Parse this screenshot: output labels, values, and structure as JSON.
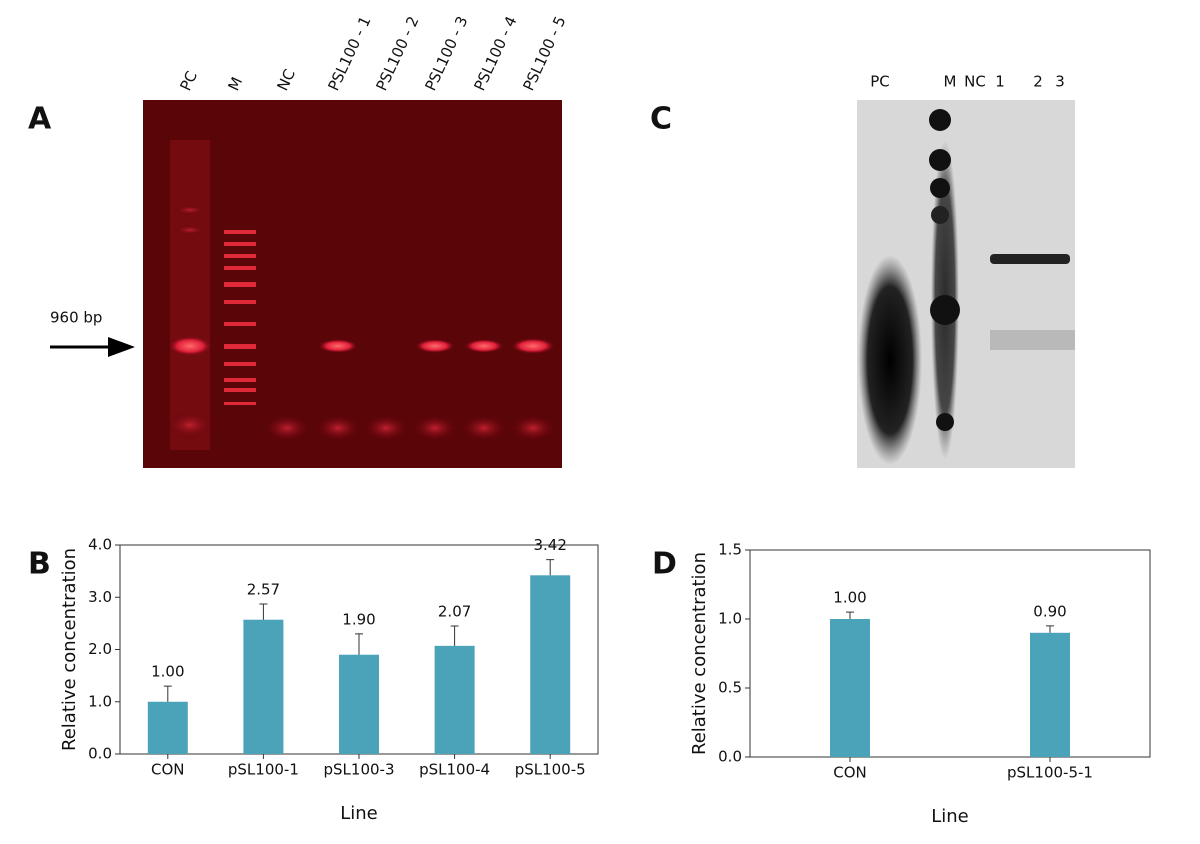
{
  "panel_letters": [
    "A",
    "B",
    "C",
    "D"
  ],
  "gels": [
    {
      "lanes": [
        "PC",
        "M",
        "NC",
        "PSL100 - 1",
        "PSL100 - 2",
        "PSL100 - 3",
        "PSL100 - 4",
        "PSL100 - 5"
      ],
      "marker_label": "960 bp"
    },
    {
      "lanes": [
        "PC",
        "M",
        "NC",
        "1",
        "2",
        "3"
      ]
    }
  ],
  "chart_data": [
    {
      "type": "bar",
      "xlabel": "Line",
      "ylabel": "Relative concentration",
      "categories": [
        "CON",
        "pSL100-1",
        "pSL100-3",
        "pSL100-4",
        "pSL100-5"
      ],
      "values": [
        1.0,
        2.57,
        1.9,
        2.07,
        3.42
      ],
      "value_labels": [
        "1.00",
        "2.57",
        "1.90",
        "2.07",
        "3.42"
      ],
      "errors": [
        0.3,
        0.3,
        0.4,
        0.38,
        0.3
      ],
      "color": "#4aa3b8",
      "ylim": [
        0,
        4
      ],
      "yticks": [
        {
          "value": 0,
          "label": "0.0"
        },
        {
          "value": 1,
          "label": "1.0"
        },
        {
          "value": 2,
          "label": "2.0"
        },
        {
          "value": 3,
          "label": "3.0"
        },
        {
          "value": 4,
          "label": "4.0"
        }
      ]
    },
    {
      "type": "bar",
      "xlabel": "Line",
      "ylabel": "Relative concentration",
      "categories": [
        "CON",
        "pSL100-5-1"
      ],
      "values": [
        1.0,
        0.9
      ],
      "value_labels": [
        "1.00",
        "0.90"
      ],
      "errors": [
        0.05,
        0.05
      ],
      "color": "#4aa3b8",
      "ylim": [
        0,
        1.5
      ],
      "yticks": [
        {
          "value": 0,
          "label": "0.0"
        },
        {
          "value": 0.5,
          "label": "0.5"
        },
        {
          "value": 1,
          "label": "1.0"
        },
        {
          "value": 1.5,
          "label": "1.5"
        }
      ]
    }
  ]
}
